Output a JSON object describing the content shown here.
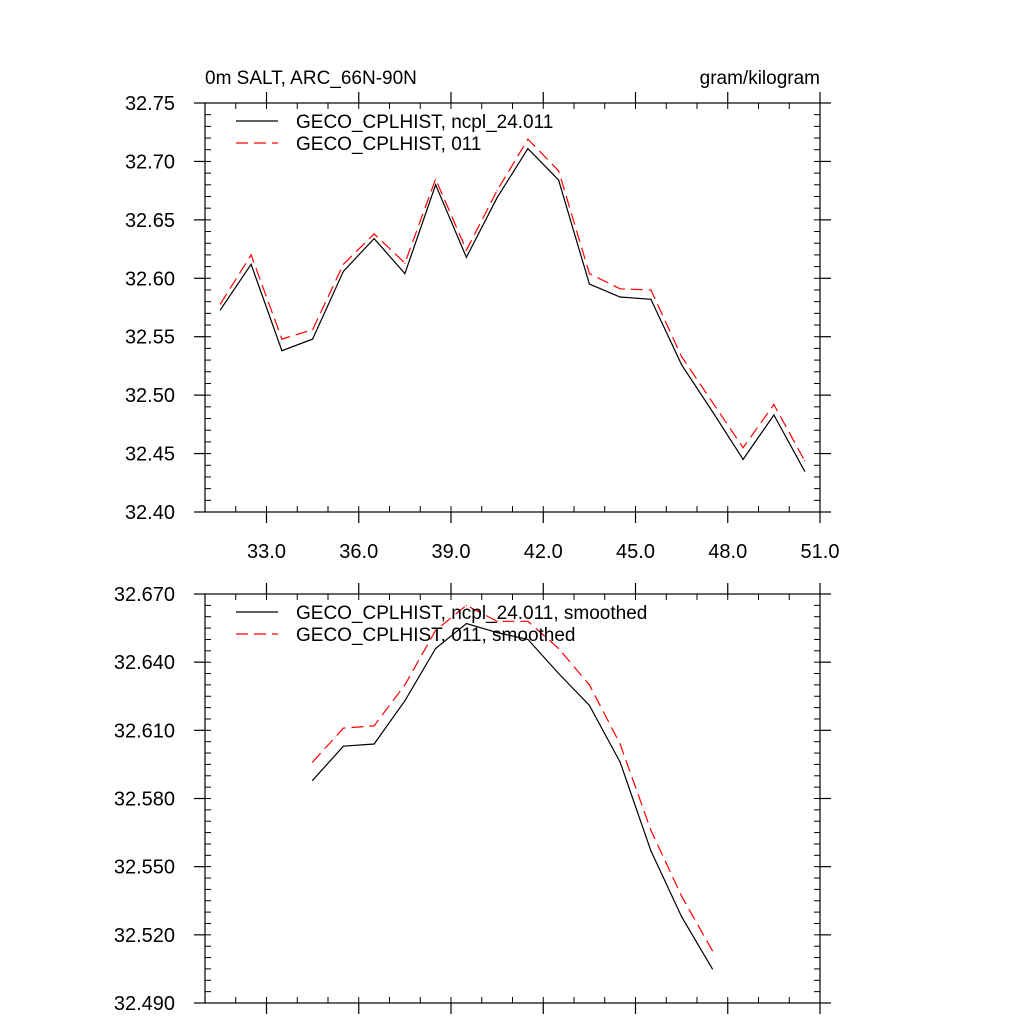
{
  "colors": {
    "series_a": "#000000",
    "series_b": "#ff0000",
    "axis": "#000000"
  },
  "chart_data": [
    {
      "type": "line",
      "title_left": "0m SALT, ARC_66N-90N",
      "title_right": "gram/kilogram",
      "xlim": [
        31.0,
        51.0
      ],
      "ylim": [
        32.4,
        32.75
      ],
      "x_major_ticks": [
        33,
        36,
        39,
        42,
        45,
        48,
        51
      ],
      "x_tick_labels": [
        "33.0",
        "36.0",
        "39.0",
        "42.0",
        "45.0",
        "48.0",
        "51.0"
      ],
      "x_minor_step": 1,
      "y_major_ticks": [
        32.4,
        32.45,
        32.5,
        32.55,
        32.6,
        32.65,
        32.7,
        32.75
      ],
      "y_tick_labels": [
        "32.40",
        "32.45",
        "32.50",
        "32.55",
        "32.60",
        "32.65",
        "32.70",
        "32.75"
      ],
      "y_minor_step": 0.01,
      "x": [
        31.5,
        32.5,
        33.5,
        34.5,
        35.5,
        36.5,
        37.5,
        38.5,
        39.5,
        40.5,
        41.5,
        42.5,
        43.5,
        44.5,
        45.5,
        46.5,
        47.5,
        48.5,
        49.5,
        50.5
      ],
      "series": [
        {
          "name": "GECO_CPLHIST, ncpl_24.011",
          "style": "solid",
          "values": [
            32.573,
            32.612,
            32.538,
            32.548,
            32.606,
            32.634,
            32.604,
            32.68,
            32.618,
            32.669,
            32.711,
            32.684,
            32.595,
            32.584,
            32.582,
            32.526,
            32.486,
            32.445,
            32.483,
            32.435
          ]
        },
        {
          "name": "GECO_CPLHIST, 011",
          "style": "dashed",
          "values": [
            32.578,
            32.62,
            32.548,
            32.556,
            32.612,
            32.638,
            32.613,
            32.685,
            32.624,
            32.675,
            32.719,
            32.692,
            32.604,
            32.591,
            32.59,
            32.533,
            32.494,
            32.455,
            32.492,
            32.444
          ]
        }
      ]
    },
    {
      "type": "line",
      "xlim": [
        31.0,
        51.0
      ],
      "ylim": [
        32.49,
        32.67
      ],
      "x_major_ticks": [
        33,
        36,
        39,
        42,
        45,
        48,
        51
      ],
      "x_tick_labels": [],
      "x_minor_step": 1,
      "y_major_ticks": [
        32.49,
        32.52,
        32.55,
        32.58,
        32.61,
        32.64,
        32.67
      ],
      "y_tick_labels": [
        "32.490",
        "32.520",
        "32.550",
        "32.580",
        "32.610",
        "32.640",
        "32.670"
      ],
      "y_minor_step": 0.005,
      "x": [
        34.5,
        35.5,
        36.5,
        37.5,
        38.5,
        39.5,
        40.5,
        41.5,
        42.5,
        43.5,
        44.5,
        45.5,
        46.5,
        47.5
      ],
      "series": [
        {
          "name": "GECO_CPLHIST, ncpl_24.011, smoothed",
          "style": "solid",
          "values": [
            32.588,
            32.603,
            32.604,
            32.623,
            32.646,
            32.657,
            32.653,
            32.65,
            32.635,
            32.621,
            32.596,
            32.557,
            32.528,
            32.505
          ]
        },
        {
          "name": "GECO_CPLHIST, 011, smoothed",
          "style": "dashed",
          "values": [
            32.596,
            32.611,
            32.612,
            32.63,
            32.654,
            32.665,
            32.658,
            32.658,
            32.646,
            32.63,
            32.604,
            32.566,
            32.537,
            32.513
          ]
        }
      ]
    }
  ]
}
